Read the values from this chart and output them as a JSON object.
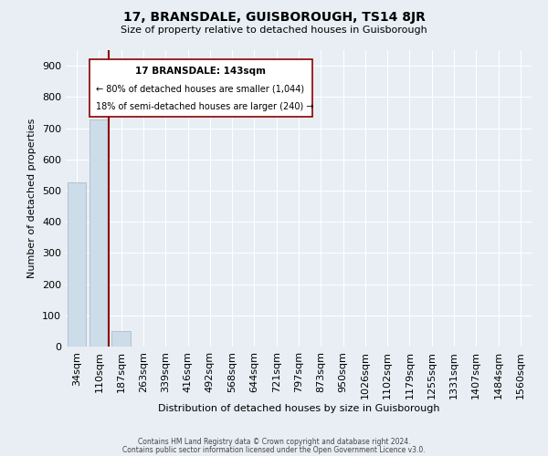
{
  "title": "17, BRANSDALE, GUISBOROUGH, TS14 8JR",
  "subtitle": "Size of property relative to detached houses in Guisborough",
  "xlabel": "Distribution of detached houses by size in Guisborough",
  "ylabel": "Number of detached properties",
  "categories": [
    "34sqm",
    "110sqm",
    "187sqm",
    "263sqm",
    "339sqm",
    "416sqm",
    "492sqm",
    "568sqm",
    "644sqm",
    "721sqm",
    "797sqm",
    "873sqm",
    "950sqm",
    "1026sqm",
    "1102sqm",
    "1179sqm",
    "1255sqm",
    "1331sqm",
    "1407sqm",
    "1484sqm",
    "1560sqm"
  ],
  "bar_values": [
    527,
    727,
    50,
    0,
    0,
    0,
    0,
    0,
    0,
    0,
    0,
    0,
    0,
    0,
    0,
    0,
    0,
    0,
    0,
    0,
    0
  ],
  "bar_color": "#ccdce8",
  "bar_edge_color": "#aabccc",
  "highlight_line_color": "#8b0000",
  "annotation_title": "17 BRANSDALE: 143sqm",
  "annotation_line1": "← 80% of detached houses are smaller (1,044)",
  "annotation_line2": "18% of semi-detached houses are larger (240) →",
  "ylim": [
    0,
    950
  ],
  "yticks": [
    0,
    100,
    200,
    300,
    400,
    500,
    600,
    700,
    800,
    900
  ],
  "background_color": "#e8eef4",
  "grid_color": "#ffffff",
  "footer_line1": "Contains HM Land Registry data © Crown copyright and database right 2024.",
  "footer_line2": "Contains public sector information licensed under the Open Government Licence v3.0."
}
